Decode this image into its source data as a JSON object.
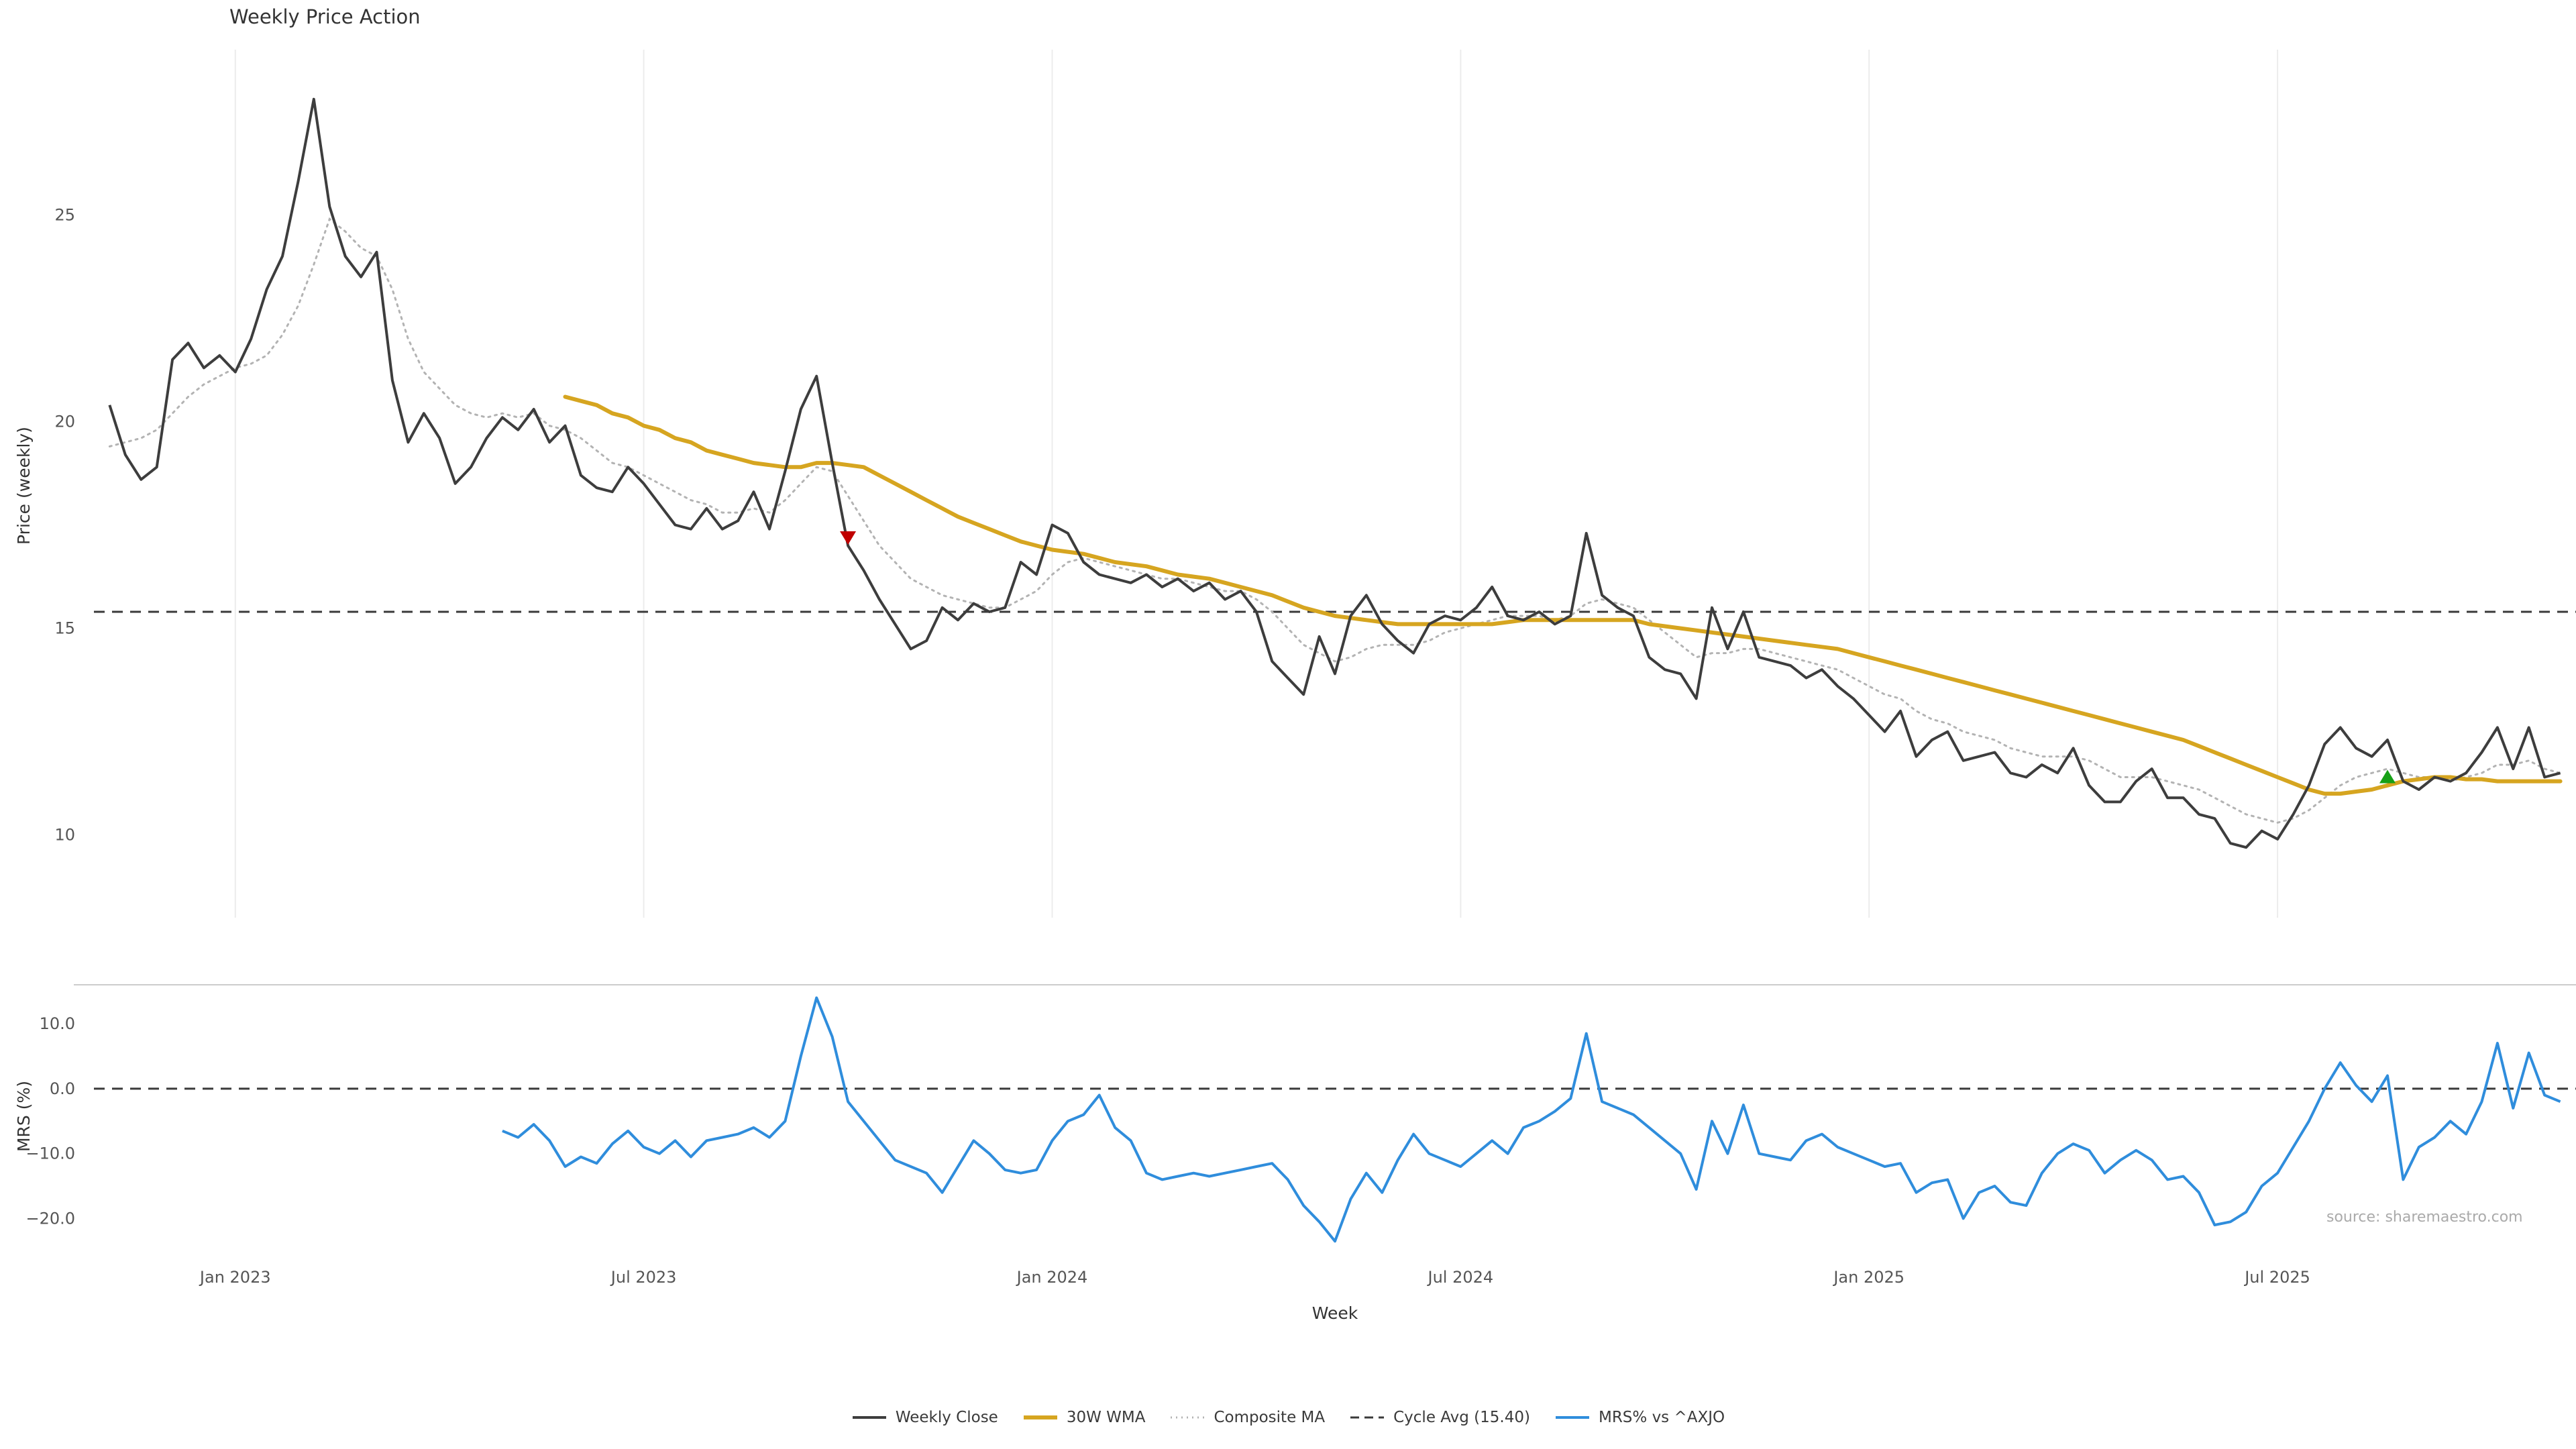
{
  "source_note": "source: sharemaestro.com",
  "colors": {
    "close": "#3d3d3d",
    "wma": "#d6a520",
    "composite": "#b3b3b3",
    "cycle": "#3a3a3a",
    "mrs": "#2f8ddc",
    "grid": "#ececec",
    "spine": "#cccccc",
    "sell": "#c00000",
    "buy": "#16a016",
    "tick": "#555555",
    "axis_label": "#333333"
  },
  "chart_data": [
    {
      "type": "line",
      "panel": "price",
      "title": "Weekly Price Action",
      "ylabel": "Price (weekly)",
      "xlabel": "Week",
      "ylim": [
        8.0,
        28.9
      ],
      "grid": "vertical-light",
      "yticks": [
        25,
        20,
        15,
        10
      ],
      "ytick_labels": [
        "25",
        "20",
        "15",
        "10"
      ],
      "xticks": {
        "positions": [
          8,
          34,
          60,
          86,
          112,
          138
        ],
        "labels": [
          "Jan 2023",
          "Jul 2023",
          "Jan 2024",
          "Jul 2024",
          "Jan 2025",
          "Jul 2025"
        ]
      },
      "cycle_avg": 15.4,
      "series": [
        {
          "name": "Weekly Close",
          "values": [
            20.4,
            19.2,
            18.6,
            18.9,
            21.5,
            21.9,
            21.3,
            21.6,
            21.2,
            22.0,
            23.2,
            24.0,
            25.8,
            27.8,
            25.2,
            24.0,
            23.5,
            24.1,
            21.0,
            19.5,
            20.2,
            19.6,
            18.5,
            18.9,
            19.6,
            20.1,
            19.8,
            20.3,
            19.5,
            19.9,
            18.7,
            18.4,
            18.3,
            18.9,
            18.5,
            18.0,
            17.5,
            17.4,
            17.9,
            17.4,
            17.6,
            18.3,
            17.4,
            18.8,
            20.3,
            21.1,
            19.0,
            17.0,
            16.4,
            15.7,
            15.1,
            14.5,
            14.7,
            15.5,
            15.2,
            15.6,
            15.4,
            15.5,
            16.6,
            16.3,
            17.5,
            17.3,
            16.6,
            16.3,
            16.2,
            16.1,
            16.3,
            16.0,
            16.2,
            15.9,
            16.1,
            15.7,
            15.9,
            15.4,
            14.2,
            13.8,
            13.4,
            14.8,
            13.9,
            15.3,
            15.8,
            15.1,
            14.7,
            14.4,
            15.1,
            15.3,
            15.2,
            15.5,
            16.0,
            15.3,
            15.2,
            15.4,
            15.1,
            15.3,
            17.3,
            15.8,
            15.5,
            15.3,
            14.3,
            14.0,
            13.9,
            13.3,
            15.5,
            14.5,
            15.4,
            14.3,
            14.2,
            14.1,
            13.8,
            14.0,
            13.6,
            13.3,
            12.9,
            12.5,
            13.0,
            11.9,
            12.3,
            12.5,
            11.8,
            11.9,
            12.0,
            11.5,
            11.4,
            11.7,
            11.5,
            12.1,
            11.2,
            10.8,
            10.8,
            11.3,
            11.6,
            10.9,
            10.9,
            10.5,
            10.4,
            9.8,
            9.7,
            10.1,
            9.9,
            10.5,
            11.2,
            12.2,
            12.6,
            12.1,
            11.9,
            12.3,
            11.3,
            11.1,
            11.4,
            11.3,
            11.5,
            12.0,
            12.6,
            11.6,
            12.6,
            11.4,
            11.5
          ]
        },
        {
          "name": "30W WMA",
          "values": [
            null,
            null,
            null,
            null,
            null,
            null,
            null,
            null,
            null,
            null,
            null,
            null,
            null,
            null,
            null,
            null,
            null,
            null,
            null,
            null,
            null,
            null,
            null,
            null,
            null,
            null,
            null,
            null,
            null,
            20.6,
            20.5,
            20.4,
            20.2,
            20.1,
            19.9,
            19.8,
            19.6,
            19.5,
            19.3,
            19.2,
            19.1,
            19.0,
            18.95,
            18.9,
            18.9,
            19.0,
            19.0,
            18.95,
            18.9,
            18.7,
            18.5,
            18.3,
            18.1,
            17.9,
            17.7,
            17.55,
            17.4,
            17.25,
            17.1,
            17.0,
            16.9,
            16.85,
            16.8,
            16.7,
            16.6,
            16.55,
            16.5,
            16.4,
            16.3,
            16.25,
            16.2,
            16.1,
            16.0,
            15.9,
            15.8,
            15.65,
            15.5,
            15.4,
            15.3,
            15.25,
            15.2,
            15.15,
            15.1,
            15.1,
            15.1,
            15.1,
            15.1,
            15.1,
            15.1,
            15.15,
            15.2,
            15.2,
            15.2,
            15.2,
            15.2,
            15.2,
            15.2,
            15.2,
            15.1,
            15.05,
            15.0,
            14.95,
            14.9,
            14.85,
            14.8,
            14.75,
            14.7,
            14.65,
            14.6,
            14.55,
            14.5,
            14.4,
            14.3,
            14.2,
            14.1,
            14.0,
            13.9,
            13.8,
            13.7,
            13.6,
            13.5,
            13.4,
            13.3,
            13.2,
            13.1,
            13.0,
            12.9,
            12.8,
            12.7,
            12.6,
            12.5,
            12.4,
            12.3,
            12.15,
            12.0,
            11.85,
            11.7,
            11.55,
            11.4,
            11.25,
            11.1,
            11.0,
            11.0,
            11.05,
            11.1,
            11.2,
            11.3,
            11.35,
            11.4,
            11.4,
            11.35,
            11.35,
            11.3,
            11.3,
            11.3,
            11.3,
            11.3
          ]
        },
        {
          "name": "Composite MA",
          "values": [
            19.4,
            19.5,
            19.6,
            19.8,
            20.2,
            20.6,
            20.9,
            21.1,
            21.3,
            21.4,
            21.6,
            22.1,
            22.8,
            23.8,
            24.9,
            24.6,
            24.2,
            24.0,
            23.2,
            22.0,
            21.2,
            20.8,
            20.4,
            20.2,
            20.1,
            20.2,
            20.1,
            20.2,
            19.9,
            19.8,
            19.6,
            19.3,
            19.0,
            18.9,
            18.7,
            18.5,
            18.3,
            18.1,
            18.0,
            17.8,
            17.8,
            17.9,
            17.8,
            18.1,
            18.5,
            18.9,
            18.8,
            18.2,
            17.6,
            17.0,
            16.6,
            16.2,
            16.0,
            15.8,
            15.7,
            15.6,
            15.5,
            15.5,
            15.7,
            15.9,
            16.3,
            16.6,
            16.7,
            16.6,
            16.5,
            16.4,
            16.3,
            16.2,
            16.2,
            16.1,
            16.0,
            15.9,
            15.9,
            15.7,
            15.4,
            15.0,
            14.6,
            14.4,
            14.2,
            14.3,
            14.5,
            14.6,
            14.6,
            14.6,
            14.7,
            14.9,
            15.0,
            15.1,
            15.2,
            15.3,
            15.3,
            15.3,
            15.2,
            15.3,
            15.6,
            15.7,
            15.6,
            15.5,
            15.2,
            14.9,
            14.6,
            14.3,
            14.4,
            14.4,
            14.5,
            14.5,
            14.4,
            14.3,
            14.2,
            14.1,
            14.0,
            13.8,
            13.6,
            13.4,
            13.3,
            13.0,
            12.8,
            12.7,
            12.5,
            12.4,
            12.3,
            12.1,
            12.0,
            11.9,
            11.9,
            11.9,
            11.8,
            11.6,
            11.4,
            11.4,
            11.4,
            11.3,
            11.2,
            11.1,
            10.9,
            10.7,
            10.5,
            10.4,
            10.3,
            10.4,
            10.6,
            10.9,
            11.2,
            11.4,
            11.5,
            11.6,
            11.5,
            11.4,
            11.4,
            11.3,
            11.4,
            11.5,
            11.7,
            11.7,
            11.8,
            11.6,
            11.5
          ]
        }
      ],
      "markers": [
        {
          "name": "sell-signal-marker",
          "shape": "triangle-down",
          "color_key": "sell",
          "week_index": 47,
          "price": 17.2
        },
        {
          "name": "buy-signal-marker",
          "shape": "triangle-up",
          "color_key": "buy",
          "week_index": 145,
          "price": 11.4
        }
      ],
      "legend": [
        {
          "label": "Weekly Close",
          "color_key": "close",
          "dash": "solid",
          "width": 4
        },
        {
          "label": "30W WMA",
          "color_key": "wma",
          "dash": "solid",
          "width": 6
        },
        {
          "label": "Composite MA",
          "color_key": "composite",
          "dash": "dotted",
          "width": 3
        },
        {
          "label": "Cycle Avg (15.40)",
          "color_key": "cycle",
          "dash": "dashed",
          "width": 3
        },
        {
          "label": "MRS% vs ^AXJO",
          "color_key": "mrs",
          "dash": "solid",
          "width": 4
        }
      ]
    },
    {
      "type": "line",
      "panel": "mrs",
      "ylabel": "MRS (%)",
      "ylim": [
        -24.5,
        16.0
      ],
      "zero_line": 0.0,
      "yticks": [
        10,
        0,
        -10,
        -20
      ],
      "ytick_labels": [
        "10.0",
        "0.0",
        "−10.0",
        "−20.0"
      ],
      "series": [
        {
          "name": "MRS% vs ^AXJO",
          "values": [
            null,
            null,
            null,
            null,
            null,
            null,
            null,
            null,
            null,
            null,
            null,
            null,
            null,
            null,
            null,
            null,
            null,
            null,
            null,
            null,
            null,
            null,
            null,
            null,
            null,
            -6.5,
            -7.5,
            -5.5,
            -8.0,
            -12.0,
            -10.5,
            -11.5,
            -8.5,
            -6.5,
            -9.0,
            -10.0,
            -8.0,
            -10.5,
            -8.0,
            -7.5,
            -7.0,
            -6.0,
            -7.5,
            -5.0,
            5.0,
            14.0,
            8.0,
            -2.0,
            -5.0,
            -8.0,
            -11.0,
            -12.0,
            -13.0,
            -16.0,
            -12.0,
            -8.0,
            -10.0,
            -12.5,
            -13.0,
            -12.5,
            -8.0,
            -5.0,
            -4.0,
            -1.0,
            -6.0,
            -8.0,
            -13.0,
            -14.0,
            -13.5,
            -13.0,
            -13.5,
            -13.0,
            -12.5,
            -12.0,
            -11.5,
            -14.0,
            -18.0,
            -20.5,
            -23.5,
            -17.0,
            -13.0,
            -16.0,
            -11.0,
            -7.0,
            -10.0,
            -11.0,
            -12.0,
            -10.0,
            -8.0,
            -10.0,
            -6.0,
            -5.0,
            -3.5,
            -1.5,
            8.5,
            -2.0,
            -3.0,
            -4.0,
            -6.0,
            -8.0,
            -10.0,
            -15.5,
            -5.0,
            -10.0,
            -2.5,
            -10.0,
            -10.5,
            -11.0,
            -8.0,
            -7.0,
            -9.0,
            -10.0,
            -11.0,
            -12.0,
            -11.5,
            -16.0,
            -14.5,
            -14.0,
            -20.0,
            -16.0,
            -15.0,
            -17.5,
            -18.0,
            -13.0,
            -10.0,
            -8.5,
            -9.5,
            -13.0,
            -11.0,
            -9.5,
            -11.0,
            -14.0,
            -13.5,
            -16.0,
            -21.0,
            -20.5,
            -19.0,
            -15.0,
            -13.0,
            -9.0,
            -5.0,
            0.0,
            4.0,
            0.5,
            -2.0,
            2.0,
            -14.0,
            -9.0,
            -7.5,
            -5.0,
            -7.0,
            -2.0,
            7.0,
            -3.0,
            5.5,
            -1.0,
            -2.0
          ]
        }
      ]
    }
  ]
}
